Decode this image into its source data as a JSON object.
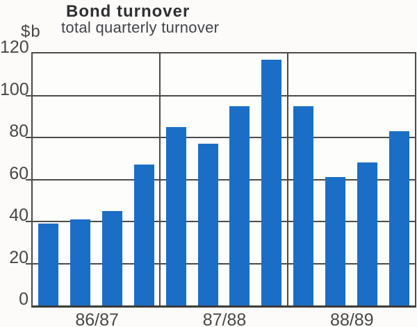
{
  "chart_data": {
    "type": "bar",
    "title": "Bond turnover",
    "subtitle": "total quarterly turnover",
    "ylabel": "$b",
    "categories": [
      "86/87",
      "87/88",
      "88/89"
    ],
    "bars_per_group": 4,
    "series": [
      {
        "name": "Bond turnover",
        "values_by_group": [
          [
            39,
            41,
            45,
            67
          ],
          [
            85,
            77,
            95,
            117
          ],
          [
            95,
            61,
            68,
            83
          ]
        ]
      }
    ],
    "ylim": [
      0,
      120
    ],
    "yticks": [
      0,
      20,
      40,
      60,
      80,
      100,
      120
    ],
    "grid": true,
    "legend_position": "none",
    "bar_color": "#1b6ec6",
    "axis_color": "#4a4a4a",
    "text_color": "#474747"
  }
}
